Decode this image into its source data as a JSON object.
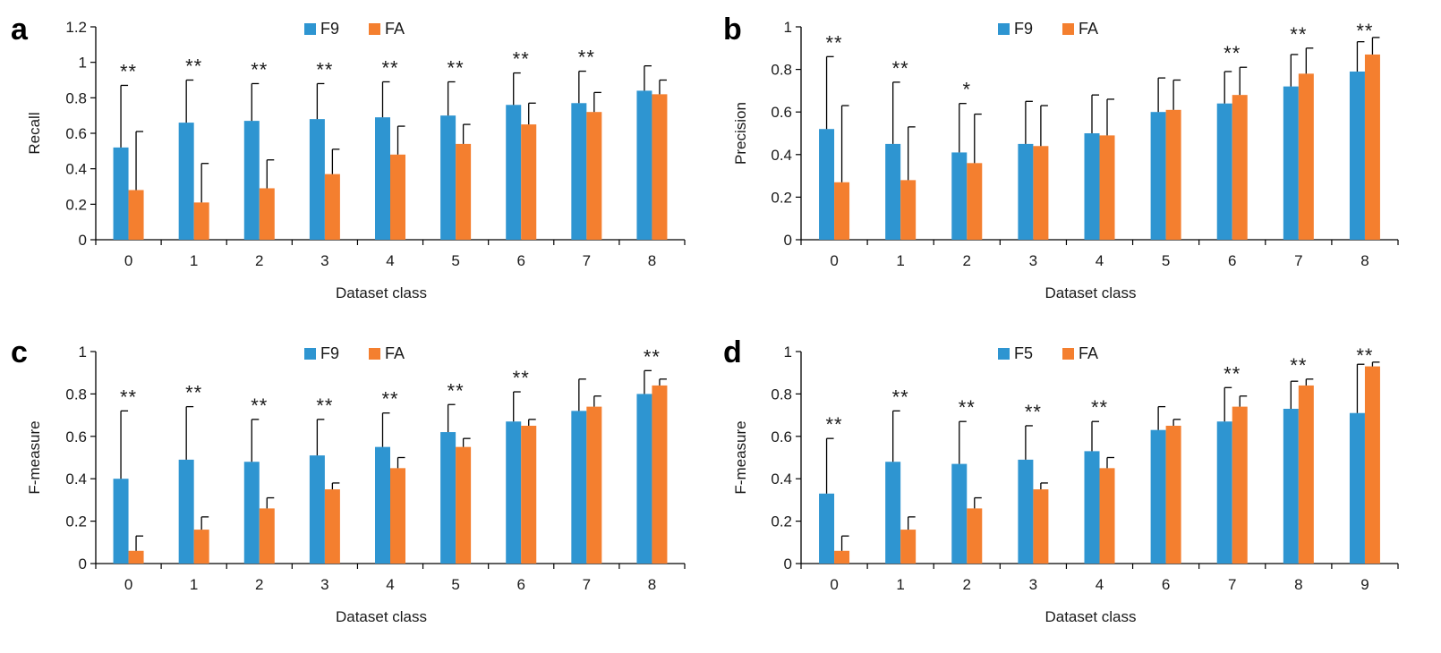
{
  "colors": {
    "series1": "#2e95d1",
    "series2": "#f47f2f",
    "axis": "#000000",
    "errorbar": "#000000"
  },
  "chart_data": [
    {
      "type": "bar",
      "panel": "a",
      "xlabel": "Dataset class",
      "ylabel": "Recall",
      "ylim": [
        0,
        1.2
      ],
      "yticks": [
        "0",
        "0.2",
        "0.4",
        "0.6",
        "0.8",
        "1",
        "1.2"
      ],
      "legend_position": "top-center",
      "categories": [
        "0",
        "1",
        "2",
        "3",
        "4",
        "5",
        "6",
        "7",
        "8"
      ],
      "series": [
        {
          "name": "F9",
          "values": [
            0.52,
            0.66,
            0.67,
            0.68,
            0.69,
            0.7,
            0.76,
            0.77,
            0.84
          ],
          "errors": [
            0.35,
            0.24,
            0.21,
            0.2,
            0.2,
            0.19,
            0.18,
            0.18,
            0.14
          ]
        },
        {
          "name": "FA",
          "values": [
            0.28,
            0.21,
            0.29,
            0.37,
            0.48,
            0.54,
            0.65,
            0.72,
            0.82
          ],
          "errors": [
            0.33,
            0.22,
            0.16,
            0.14,
            0.16,
            0.11,
            0.12,
            0.11,
            0.08
          ]
        }
      ],
      "significance": [
        "**",
        "**",
        "**",
        "**",
        "**",
        "**",
        "**",
        "**",
        ""
      ]
    },
    {
      "type": "bar",
      "panel": "b",
      "xlabel": "Dataset class",
      "ylabel": "Precision",
      "ylim": [
        0,
        1
      ],
      "yticks": [
        "0",
        "0.2",
        "0.4",
        "0.6",
        "0.8",
        "1"
      ],
      "legend_position": "top-right",
      "categories": [
        "0",
        "1",
        "2",
        "3",
        "4",
        "5",
        "6",
        "7",
        "8"
      ],
      "series": [
        {
          "name": "F9",
          "values": [
            0.52,
            0.45,
            0.41,
            0.45,
            0.5,
            0.6,
            0.64,
            0.72,
            0.79
          ],
          "errors": [
            0.34,
            0.29,
            0.23,
            0.2,
            0.18,
            0.16,
            0.15,
            0.15,
            0.14
          ]
        },
        {
          "name": "FA",
          "values": [
            0.27,
            0.28,
            0.36,
            0.44,
            0.49,
            0.61,
            0.68,
            0.78,
            0.87
          ],
          "errors": [
            0.36,
            0.25,
            0.23,
            0.19,
            0.17,
            0.14,
            0.13,
            0.12,
            0.08
          ]
        }
      ],
      "significance": [
        "**",
        "**",
        "*",
        "",
        "",
        "",
        "**",
        "**",
        "**"
      ]
    },
    {
      "type": "bar",
      "panel": "c",
      "xlabel": "Dataset class",
      "ylabel": "F-measure",
      "ylim": [
        0,
        1
      ],
      "yticks": [
        "0",
        "0.2",
        "0.4",
        "0.6",
        "0.8",
        "1"
      ],
      "legend_position": "top-center",
      "categories": [
        "0",
        "1",
        "2",
        "3",
        "4",
        "5",
        "6",
        "7",
        "8"
      ],
      "series": [
        {
          "name": "F9",
          "values": [
            0.4,
            0.49,
            0.48,
            0.51,
            0.55,
            0.62,
            0.67,
            0.72,
            0.8
          ],
          "errors": [
            0.32,
            0.25,
            0.2,
            0.17,
            0.16,
            0.13,
            0.14,
            0.15,
            0.11
          ]
        },
        {
          "name": "FA",
          "values": [
            0.06,
            0.16,
            0.26,
            0.35,
            0.45,
            0.55,
            0.65,
            0.74,
            0.84
          ],
          "errors": [
            0.07,
            0.06,
            0.05,
            0.03,
            0.05,
            0.04,
            0.03,
            0.05,
            0.03
          ]
        }
      ],
      "significance": [
        "**",
        "**",
        "**",
        "**",
        "**",
        "**",
        "**",
        "",
        "**"
      ]
    },
    {
      "type": "bar",
      "panel": "d",
      "xlabel": "Dataset class",
      "ylabel": "F-measure",
      "ylim": [
        0,
        1
      ],
      "yticks": [
        "0",
        "0.2",
        "0.4",
        "0.6",
        "0.8",
        "1"
      ],
      "legend_position": "top-right",
      "categories": [
        "0",
        "1",
        "2",
        "3",
        "4",
        "6",
        "7",
        "8",
        "9"
      ],
      "series": [
        {
          "name": "F5",
          "values": [
            0.33,
            0.48,
            0.47,
            0.49,
            0.53,
            0.63,
            0.67,
            0.73,
            0.71
          ],
          "errors": [
            0.26,
            0.24,
            0.2,
            0.16,
            0.14,
            0.11,
            0.16,
            0.13,
            0.23
          ]
        },
        {
          "name": "FA",
          "values": [
            0.06,
            0.16,
            0.26,
            0.35,
            0.45,
            0.65,
            0.74,
            0.84,
            0.93
          ],
          "errors": [
            0.07,
            0.06,
            0.05,
            0.03,
            0.05,
            0.03,
            0.05,
            0.03,
            0.02
          ]
        }
      ],
      "significance": [
        "**",
        "**",
        "**",
        "**",
        "**",
        "",
        "**",
        "**",
        "**"
      ]
    }
  ]
}
